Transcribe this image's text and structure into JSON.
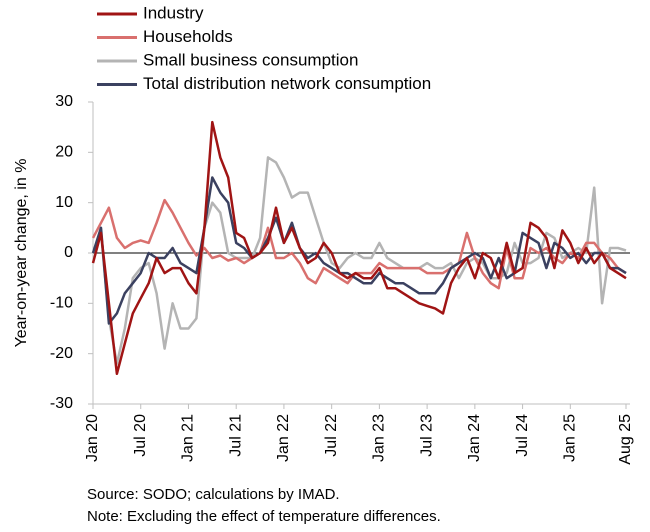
{
  "chart_data": {
    "type": "line",
    "ylabel": "Year-on-year change, in %",
    "notes": [
      "Source: SODO; calculations by IMAD.",
      "Note: Excluding the effect of temperature differences."
    ],
    "categories": [
      "Jan 20",
      null,
      null,
      null,
      null,
      null,
      "Jul 20",
      null,
      null,
      null,
      null,
      null,
      "Jan 21",
      null,
      null,
      null,
      null,
      null,
      "Jul 21",
      null,
      null,
      null,
      null,
      null,
      "Jan 22",
      null,
      null,
      null,
      null,
      null,
      "Jul 22",
      null,
      null,
      null,
      null,
      null,
      "Jan 23",
      null,
      null,
      null,
      null,
      null,
      "Jul 23",
      null,
      null,
      null,
      null,
      null,
      "Jan 24",
      null,
      null,
      null,
      null,
      null,
      "Jul 24",
      null,
      null,
      null,
      null,
      null,
      "Jan 25",
      null,
      null,
      null,
      null,
      null,
      null,
      "Aug 25"
    ],
    "ylim": [
      -30,
      30
    ],
    "yticks": [
      -30,
      -20,
      -10,
      0,
      10,
      20,
      30
    ],
    "series": [
      {
        "name": "Industry",
        "color": "#a01414",
        "values": [
          -2,
          4,
          -10,
          -24,
          -18,
          -12,
          -9,
          -6,
          -1,
          -4,
          -3,
          -3,
          -6,
          -8,
          5,
          26,
          19,
          15,
          4,
          3,
          -1,
          0,
          2,
          9,
          2,
          5,
          1,
          -2,
          -1,
          2,
          0,
          -4,
          -5,
          -4,
          -5,
          -5,
          -3,
          -7,
          -7,
          -8,
          -9,
          -10,
          -10.5,
          -11,
          -12,
          -6,
          -3,
          -1,
          -5,
          0,
          -1,
          -5,
          2,
          -4,
          -3,
          6,
          5,
          3,
          -3,
          4.5,
          2,
          -2,
          1,
          -2,
          0,
          -3,
          -4,
          -5
        ]
      },
      {
        "name": "Households",
        "color": "#d9706e",
        "values": [
          3,
          6,
          9,
          3,
          1,
          2,
          2.5,
          2,
          6,
          10.5,
          8,
          5,
          2,
          -0.5,
          1,
          -1,
          -0.5,
          -1.5,
          -1,
          -2,
          -1,
          0,
          5,
          -1,
          -1,
          0,
          -2,
          -5,
          -6,
          -3,
          -4,
          -5,
          -6,
          -4,
          -4,
          -4,
          -2,
          -3,
          -3,
          -3,
          -3,
          -3,
          -4,
          -4,
          -4,
          -3,
          -2,
          4,
          -1,
          -4,
          -6,
          -7,
          1,
          -5,
          -5,
          1,
          0,
          1,
          -1,
          -2,
          0,
          -1,
          2,
          2,
          0,
          -1,
          -3,
          -4
        ]
      },
      {
        "name": "Small business consumption",
        "color": "#b4b4b4",
        "values": [
          0,
          4,
          -13,
          -22,
          -15,
          -5,
          -3,
          -2,
          -8,
          -19,
          -10,
          -15,
          -15,
          -13,
          5,
          10,
          8,
          0,
          -1,
          -1,
          -1,
          3,
          19,
          18,
          15,
          11,
          12,
          12,
          7,
          2,
          -2,
          -3,
          -1,
          0,
          -1,
          -1,
          2,
          -1,
          -2,
          -3,
          -3,
          -3,
          -2,
          -3,
          -3,
          -2,
          -5,
          -2,
          -1,
          -2,
          -5,
          -5,
          -4,
          2,
          -2,
          -2,
          -1,
          4,
          3,
          -1,
          0,
          1,
          0,
          13,
          -10,
          1,
          1,
          0.5
        ]
      },
      {
        "name": "Total distribution network consumption",
        "color": "#3b4160",
        "values": [
          0,
          5,
          -14,
          -12,
          -8,
          -6,
          -4,
          0,
          -1,
          -1,
          1,
          -2,
          -3,
          -4,
          5,
          15,
          12,
          10,
          2,
          1,
          -1,
          0,
          3,
          7,
          2,
          6,
          1,
          -1,
          0,
          -2,
          -3,
          -4,
          -4,
          -5,
          -6,
          -6,
          -4,
          -5,
          -6,
          -6,
          -7,
          -8,
          -8,
          -8,
          -6,
          -3,
          -2,
          -1,
          0,
          -1,
          -5,
          -1,
          -5,
          -4,
          4,
          3,
          2,
          -3,
          2,
          1,
          -1,
          0,
          -2,
          0,
          0,
          -3,
          -3,
          -4
        ]
      }
    ]
  }
}
